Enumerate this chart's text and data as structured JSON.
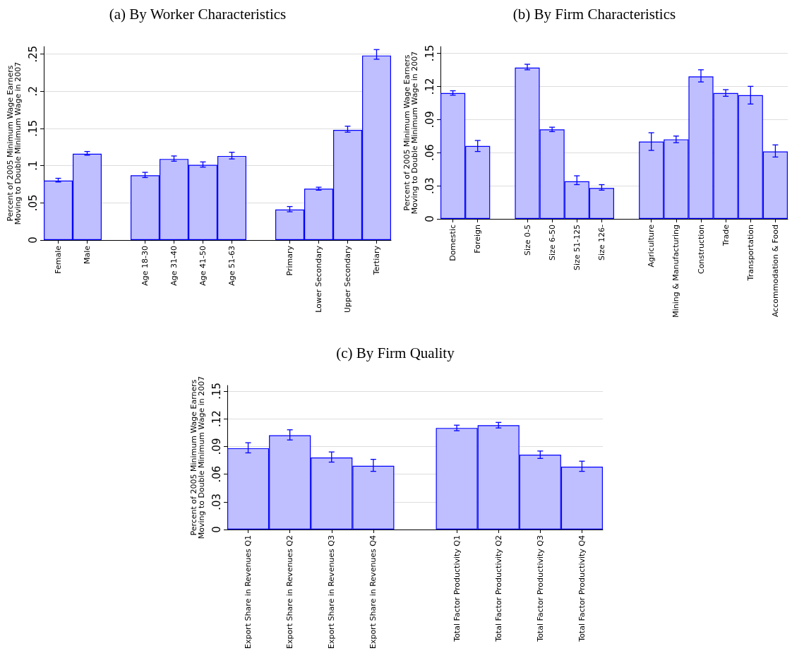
{
  "chart_data": [
    {
      "type": "bar",
      "title": "(a) By Worker Characteristics",
      "ylabel": "Percent of 2005 Minimum Wage Earners Moving to Double Minimum Wage in 2007",
      "color": "#bfbfff",
      "grid": "y",
      "categories": [
        "Female",
        "Male",
        null,
        "Age 18-30",
        "Age 31-40",
        "Age 41-50",
        "Age 51-63",
        null,
        "Primary",
        "Lower Secondary",
        "Upper Secondary",
        "Tertiary"
      ],
      "values": [
        0.08,
        0.116,
        null,
        0.087,
        0.109,
        0.101,
        0.113,
        null,
        0.041,
        0.069,
        0.148,
        0.248
      ],
      "errors": [
        [
          0.078,
          0.083
        ],
        [
          0.114,
          0.119
        ],
        null,
        [
          0.084,
          0.091
        ],
        [
          0.106,
          0.113
        ],
        [
          0.098,
          0.105
        ],
        [
          0.109,
          0.118
        ],
        null,
        [
          0.038,
          0.045
        ],
        [
          0.067,
          0.071
        ],
        [
          0.145,
          0.153
        ],
        [
          0.243,
          0.256
        ]
      ],
      "ylim": [
        0,
        0.26
      ],
      "yticks": [
        {
          "value": 0,
          "label": "0"
        },
        {
          "value": 0.05,
          "label": ".05"
        },
        {
          "value": 0.1,
          "label": ".1"
        },
        {
          "value": 0.15,
          "label": ".15"
        },
        {
          "value": 0.2,
          "label": ".2"
        },
        {
          "value": 0.25,
          "label": ".25"
        }
      ]
    },
    {
      "type": "bar",
      "title": "(b) By Firm Characteristics",
      "ylabel": "Percent of 2005 Minimum Wage Earners Moving to Double Minimum Wage in 2007",
      "color": "#bfbfff",
      "grid": "y",
      "categories": [
        "Domestic",
        "Foreign",
        null,
        "Size 0-5",
        "Size 6-50",
        "Size 51-125",
        "Size 126-",
        null,
        "Agriculture",
        "Mining & Manufacturing",
        "Construction",
        "Trade",
        "Transportation",
        "Accommodation & Food"
      ],
      "values": [
        0.114,
        0.066,
        null,
        0.137,
        0.081,
        0.034,
        0.028,
        null,
        0.07,
        0.072,
        0.129,
        0.114,
        0.112,
        0.061
      ],
      "errors": [
        [
          0.112,
          0.116
        ],
        [
          0.061,
          0.071
        ],
        null,
        [
          0.135,
          0.14
        ],
        [
          0.079,
          0.083
        ],
        [
          0.031,
          0.039
        ],
        [
          0.026,
          0.031
        ],
        null,
        [
          0.062,
          0.078
        ],
        [
          0.069,
          0.075
        ],
        [
          0.124,
          0.135
        ],
        [
          0.111,
          0.117
        ],
        [
          0.104,
          0.12
        ],
        [
          0.056,
          0.067
        ]
      ],
      "ylim": [
        0,
        0.156
      ],
      "yticks": [
        {
          "value": 0,
          "label": "0"
        },
        {
          "value": 0.03,
          "label": ".03"
        },
        {
          "value": 0.06,
          "label": ".06"
        },
        {
          "value": 0.09,
          "label": ".09"
        },
        {
          "value": 0.12,
          "label": ".12"
        },
        {
          "value": 0.15,
          "label": ".15"
        }
      ]
    },
    {
      "type": "bar",
      "title": "(c) By Firm Quality",
      "ylabel": "Percent of 2005 Minimum Wage Earners Moving to Double Minimum Wage in 2007",
      "color": "#bfbfff",
      "grid": "y",
      "categories": [
        "Export Share in Revenues Q1",
        "Export Share in Revenues Q2",
        "Export Share in Revenues Q3",
        "Export Share in Revenues Q4",
        null,
        "Total Factor Productivity Q1",
        "Total Factor Productivity Q2",
        "Total Factor Productivity Q3",
        "Total Factor Productivity Q4"
      ],
      "values": [
        0.088,
        0.102,
        0.078,
        0.069,
        null,
        0.11,
        0.113,
        0.081,
        0.068
      ],
      "errors": [
        [
          0.083,
          0.094
        ],
        [
          0.097,
          0.108
        ],
        [
          0.073,
          0.084
        ],
        [
          0.063,
          0.076
        ],
        null,
        [
          0.107,
          0.113
        ],
        [
          0.11,
          0.116
        ],
        [
          0.077,
          0.085
        ],
        [
          0.063,
          0.074
        ]
      ],
      "ylim": [
        0,
        0.156
      ],
      "yticks": [
        {
          "value": 0,
          "label": "0"
        },
        {
          "value": 0.03,
          "label": ".03"
        },
        {
          "value": 0.06,
          "label": ".06"
        },
        {
          "value": 0.09,
          "label": ".09"
        },
        {
          "value": 0.12,
          "label": ".12"
        },
        {
          "value": 0.15,
          "label": ".15"
        }
      ]
    }
  ]
}
